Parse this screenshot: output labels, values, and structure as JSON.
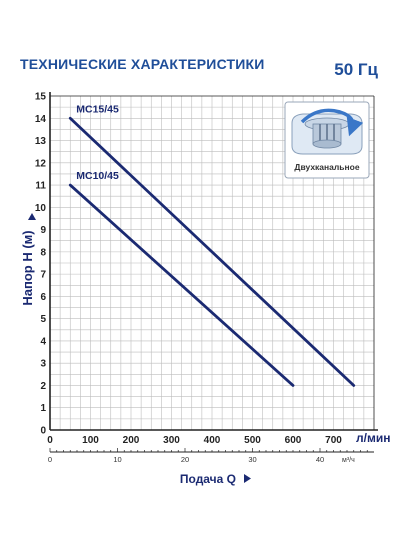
{
  "header": {
    "title": "ТЕХНИЧЕСКИЕ ХАРАКТЕРИСТИКИ",
    "frequency": "50 Гц"
  },
  "inset": {
    "caption": "Двухканальное"
  },
  "colors": {
    "title": "#1f4e99",
    "curve": "#1b2a72",
    "grid": "#bdbdbd",
    "axis": "#222222",
    "inset_arrow": "#3a77c8"
  },
  "chart_data": {
    "type": "line",
    "xlabel": "л/мин",
    "ylabel": "Напор H (м)",
    "xlim": [
      0,
      800
    ],
    "ylim": [
      0,
      15
    ],
    "x_ticks": [
      0,
      100,
      200,
      300,
      400,
      500,
      600,
      700
    ],
    "y_ticks": [
      0,
      1,
      2,
      3,
      4,
      5,
      6,
      7,
      8,
      9,
      10,
      11,
      12,
      13,
      14,
      15
    ],
    "grid": true,
    "secondary_x_axis": {
      "label": "Подача Q",
      "unit": "м³/ч",
      "ticks": [
        0,
        10,
        20,
        30,
        40
      ]
    },
    "series": [
      {
        "name": "MC15/45",
        "x": [
          50,
          750
        ],
        "y": [
          14,
          2
        ]
      },
      {
        "name": "MC10/45",
        "x": [
          50,
          600
        ],
        "y": [
          11,
          2
        ]
      }
    ]
  }
}
